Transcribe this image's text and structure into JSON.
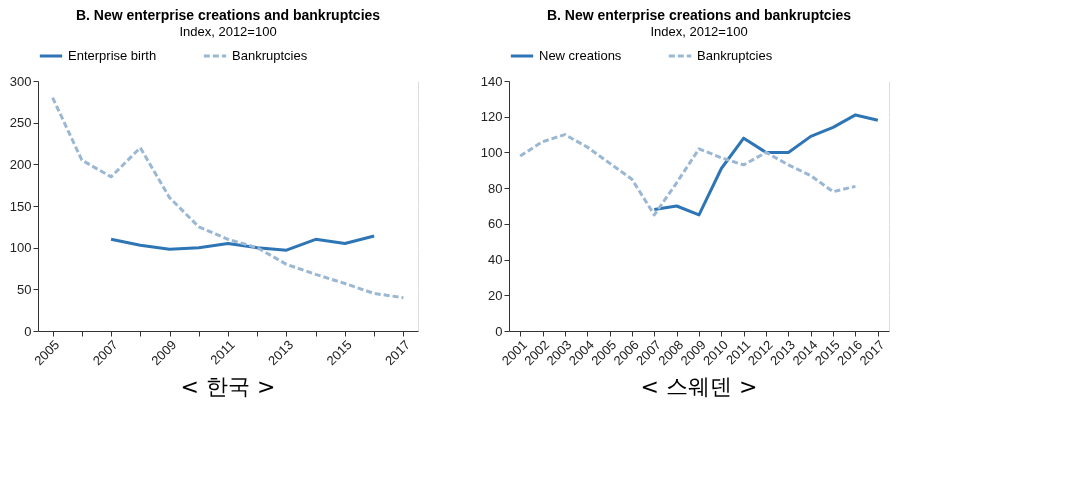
{
  "chart_data": [
    {
      "type": "line",
      "title": "B. New enterprise creations and bankruptcies",
      "subtitle": "Index, 2012=100",
      "categories": [
        "2005",
        null,
        "2007",
        null,
        "2009",
        null,
        "2011",
        null,
        "2013",
        null,
        "2015",
        null,
        "2017"
      ],
      "series": [
        {
          "name": "Enterprise birth",
          "color": "#2e75b6",
          "line_style": "solid",
          "values": [
            null,
            null,
            110,
            103,
            98,
            100,
            105,
            100,
            97,
            110,
            105,
            114,
            null
          ]
        },
        {
          "name": "Bankruptcies",
          "color": "#9ab7d3",
          "line_style": "dashed",
          "values": [
            280,
            205,
            185,
            220,
            160,
            125,
            110,
            100,
            80,
            68,
            57,
            45,
            40
          ]
        }
      ],
      "ylim": [
        0,
        300
      ],
      "yticks": [
        0,
        50,
        100,
        150,
        200,
        250,
        300
      ],
      "grid": true,
      "legend": "top",
      "annotations": [
        "< 한국 >"
      ]
    },
    {
      "type": "line",
      "title": "B. New enterprise creations and bankruptcies",
      "subtitle": "Index, 2012=100",
      "categories": [
        "2001",
        "2002",
        "2003",
        "2004",
        "2005",
        "2006",
        "2007",
        "2008",
        "2009",
        "2010",
        "2011",
        "2012",
        "2013",
        "2014",
        "2015",
        "2016",
        "2017"
      ],
      "series": [
        {
          "name": "New creations",
          "color": "#2e75b6",
          "line_style": "solid",
          "values": [
            null,
            null,
            null,
            null,
            null,
            null,
            68,
            70,
            65,
            91,
            108,
            100,
            100,
            109,
            114,
            121,
            118
          ]
        },
        {
          "name": "Bankruptcies",
          "color": "#9ab7d3",
          "line_style": "dashed",
          "values": [
            98,
            106,
            110,
            103,
            94,
            85,
            65,
            83,
            102,
            97,
            93,
            100,
            93,
            87,
            78,
            81,
            null
          ]
        }
      ],
      "ylim": [
        0,
        140
      ],
      "yticks": [
        0,
        20,
        40,
        60,
        80,
        100,
        120,
        140
      ],
      "grid": true,
      "legend": "top",
      "annotations": [
        "< 스웨덴 >"
      ]
    }
  ]
}
